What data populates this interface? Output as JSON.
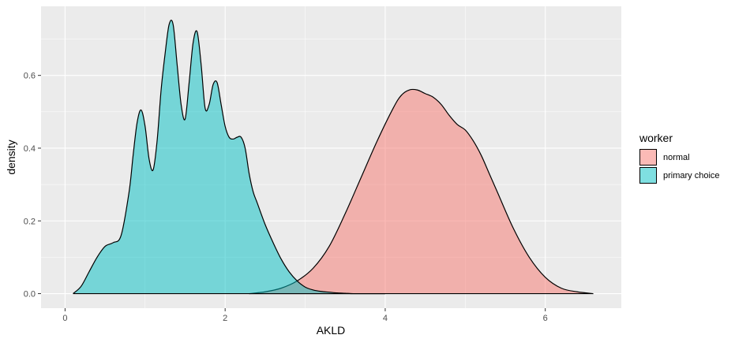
{
  "chart_data": {
    "type": "area",
    "title": "",
    "xlabel": "AKLD",
    "ylabel": "density",
    "xlim": [
      -0.3,
      6.95
    ],
    "ylim": [
      -0.04,
      0.79
    ],
    "x_ticks": [
      0,
      2,
      4,
      6
    ],
    "y_ticks": [
      0.0,
      0.2,
      0.4,
      0.6
    ],
    "x_tick_labels": [
      "0",
      "2",
      "4",
      "6"
    ],
    "y_tick_labels": [
      "0.0",
      "0.2",
      "0.4",
      "0.6"
    ],
    "grid": true,
    "legend": {
      "title": "worker",
      "position": "right",
      "entries": [
        {
          "label": "normal",
          "fill": "#F8766D"
        },
        {
          "label": "primary choice",
          "fill": "#00BFC4"
        }
      ]
    },
    "series": [
      {
        "name": "normal",
        "fill": "#F8766D",
        "x": [
          2.3,
          2.5,
          2.7,
          2.9,
          3.1,
          3.3,
          3.5,
          3.7,
          3.9,
          4.1,
          4.2,
          4.3,
          4.4,
          4.5,
          4.6,
          4.7,
          4.8,
          4.9,
          5.0,
          5.1,
          5.2,
          5.3,
          5.4,
          5.6,
          5.8,
          6.0,
          6.2,
          6.4,
          6.6
        ],
        "y": [
          0.0,
          0.005,
          0.015,
          0.035,
          0.07,
          0.13,
          0.22,
          0.32,
          0.42,
          0.51,
          0.545,
          0.56,
          0.56,
          0.55,
          0.54,
          0.52,
          0.49,
          0.465,
          0.45,
          0.42,
          0.38,
          0.33,
          0.28,
          0.18,
          0.1,
          0.045,
          0.015,
          0.005,
          0.0
        ]
      },
      {
        "name": "primary choice",
        "fill": "#00BFC4",
        "x": [
          0.1,
          0.2,
          0.3,
          0.4,
          0.5,
          0.6,
          0.7,
          0.8,
          0.85,
          0.9,
          0.95,
          1.0,
          1.05,
          1.1,
          1.15,
          1.2,
          1.25,
          1.3,
          1.35,
          1.4,
          1.45,
          1.5,
          1.55,
          1.6,
          1.65,
          1.7,
          1.75,
          1.8,
          1.85,
          1.9,
          1.95,
          2.0,
          2.05,
          2.1,
          2.15,
          2.2,
          2.25,
          2.3,
          2.35,
          2.4,
          2.5,
          2.6,
          2.7,
          2.8,
          2.9,
          3.0,
          3.1,
          3.2,
          3.3,
          3.4,
          3.5,
          3.6,
          3.7,
          3.8,
          3.9,
          4.0
        ],
        "y": [
          0.0,
          0.02,
          0.06,
          0.1,
          0.13,
          0.14,
          0.16,
          0.28,
          0.38,
          0.47,
          0.505,
          0.46,
          0.37,
          0.34,
          0.42,
          0.56,
          0.66,
          0.74,
          0.74,
          0.63,
          0.52,
          0.48,
          0.58,
          0.69,
          0.72,
          0.63,
          0.51,
          0.52,
          0.575,
          0.58,
          0.52,
          0.46,
          0.43,
          0.425,
          0.43,
          0.43,
          0.4,
          0.33,
          0.28,
          0.25,
          0.19,
          0.14,
          0.095,
          0.06,
          0.035,
          0.018,
          0.01,
          0.006,
          0.004,
          0.002,
          0.001,
          0.0,
          0.0,
          0.0,
          0.0,
          0.0
        ]
      }
    ]
  }
}
